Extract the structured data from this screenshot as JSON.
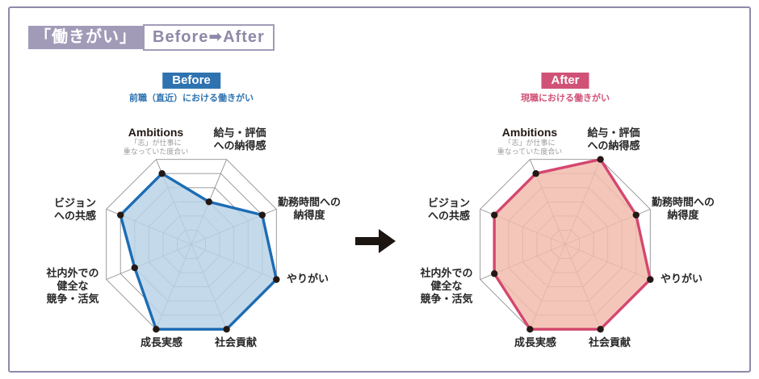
{
  "canvas": {
    "border_color": "#9089a9"
  },
  "header": {
    "title_badge": "「働きがい」",
    "title_rest": "Before➡After",
    "badge_bg": "#a29bb8",
    "text_color": "#8f88a8"
  },
  "arrow": {
    "icon": "black-right-arrow",
    "color": "#1c1512"
  },
  "panels": [
    {
      "id": "before",
      "badge": "Before",
      "caption": "前職（直近）における働きがい",
      "accent": "#2e73b0",
      "fill": "#b9d3e7",
      "stroke": "#1c6cb4"
    },
    {
      "id": "after",
      "badge": "After",
      "caption": "現職における働きがい",
      "accent": "#d05277",
      "fill": "#f2bbad",
      "stroke": "#d4476f"
    }
  ],
  "chart_data": {
    "type": "radar",
    "levels": 6,
    "max": 6,
    "grid_color": "#919191",
    "point_color": "#231815",
    "axes": [
      {
        "lines": [
          "Ambitions"
        ],
        "sub": [
          "「志」が仕事に",
          "重なっていた度合い"
        ]
      },
      {
        "lines": [
          "給与・評価",
          "への納得感"
        ]
      },
      {
        "lines": [
          "勤務時間への",
          "納得度"
        ]
      },
      {
        "lines": [
          "やりがい"
        ]
      },
      {
        "lines": [
          "社会貢献"
        ]
      },
      {
        "lines": [
          "成長実感"
        ]
      },
      {
        "lines": [
          "社内外での",
          "健全な",
          "競争・活気"
        ]
      },
      {
        "lines": [
          "ビジョン",
          "への共感"
        ]
      }
    ],
    "series": [
      {
        "name": "Before",
        "values": [
          5,
          3,
          5,
          6,
          6,
          6,
          4,
          5
        ]
      },
      {
        "name": "After",
        "values": [
          5,
          6,
          5,
          6,
          6,
          6,
          5,
          5
        ]
      }
    ]
  }
}
